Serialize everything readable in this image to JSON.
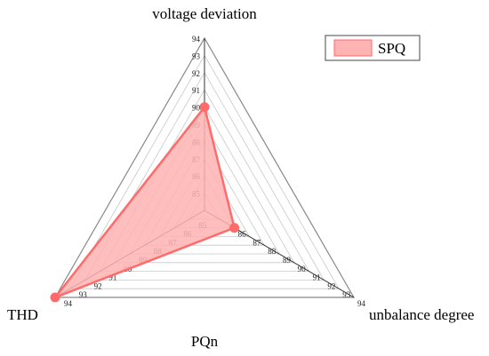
{
  "chart_data": {
    "type": "radar",
    "axes": [
      {
        "label": "voltage deviation",
        "tick_labels": [
          "85",
          "86",
          "87",
          "88",
          "89",
          "90",
          "91",
          "92",
          "93",
          "94"
        ]
      },
      {
        "label": "unbalance degree",
        "tick_labels": [
          "86",
          "87",
          "88",
          "89",
          "90",
          "91",
          "92",
          "93",
          "94"
        ]
      },
      {
        "label": "THD",
        "tick_labels": [
          "85",
          "86",
          "87",
          "88",
          "89",
          "90",
          "91",
          "92",
          "93",
          "94"
        ]
      }
    ],
    "extra_label": "PQn",
    "range": [
      84,
      94
    ],
    "grid": true,
    "legend_position": "top-right",
    "series": [
      {
        "name": "SPQ",
        "values": [
          90,
          86,
          94
        ],
        "color": "#ff6b6b",
        "fill": "#ffb3b3"
      }
    ]
  }
}
